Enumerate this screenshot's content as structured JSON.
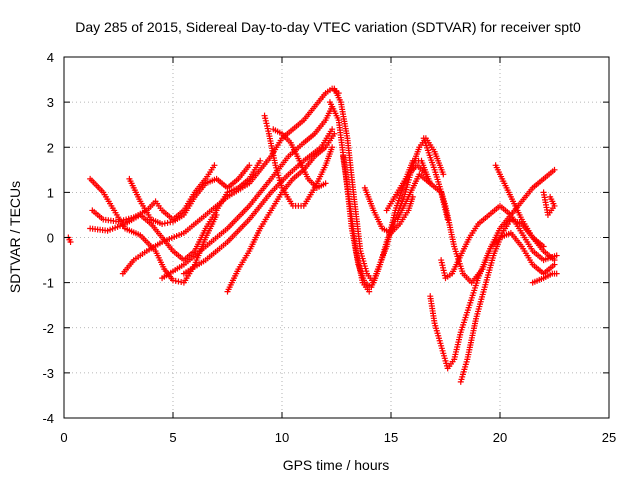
{
  "chart_data": {
    "type": "scatter",
    "title": "Day 285 of 2015, Sidereal Day-to-day VTEC variation (SDTVAR) for receiver spt0",
    "xlabel": "GPS time / hours",
    "ylabel": "SDTVAR / TECUs",
    "xlim": [
      0,
      25
    ],
    "ylim": [
      -4,
      4
    ],
    "xticks": [
      "0",
      "5",
      "10",
      "15",
      "20",
      "25"
    ],
    "yticks": [
      "4",
      "3",
      "2",
      "1",
      "0",
      "-1",
      "-2",
      "-3",
      "-4"
    ],
    "grid": true,
    "marker": "plus",
    "color": "#ff0000",
    "tracks": [
      [
        [
          0.2,
          0.0
        ],
        [
          0.3,
          -0.1
        ]
      ],
      [
        [
          1.2,
          1.3
        ],
        [
          1.8,
          1.0
        ],
        [
          2.3,
          0.6
        ],
        [
          2.8,
          0.2
        ],
        [
          3.5,
          0.05
        ],
        [
          4.2,
          -0.3
        ],
        [
          4.6,
          -0.7
        ],
        [
          5.0,
          -0.95
        ],
        [
          5.5,
          -1.0
        ],
        [
          6.0,
          -0.6
        ],
        [
          6.5,
          0.0
        ],
        [
          7.0,
          0.5
        ]
      ],
      [
        [
          1.3,
          0.6
        ],
        [
          1.8,
          0.4
        ],
        [
          2.5,
          0.35
        ],
        [
          3.2,
          0.45
        ],
        [
          3.8,
          0.6
        ],
        [
          4.2,
          0.8
        ],
        [
          4.5,
          0.6
        ],
        [
          5.0,
          0.4
        ],
        [
          5.5,
          0.6
        ],
        [
          6.0,
          1.0
        ],
        [
          6.5,
          1.3
        ],
        [
          6.9,
          1.6
        ]
      ],
      [
        [
          1.2,
          0.2
        ],
        [
          2.0,
          0.15
        ],
        [
          2.8,
          0.3
        ],
        [
          3.5,
          0.5
        ],
        [
          4.0,
          0.3
        ],
        [
          4.5,
          0.0
        ],
        [
          5.0,
          -0.3
        ],
        [
          5.5,
          -0.5
        ],
        [
          6.0,
          -0.3
        ],
        [
          6.5,
          0.2
        ],
        [
          7.0,
          0.6
        ],
        [
          7.5,
          1.0
        ],
        [
          8.0,
          1.1
        ],
        [
          8.5,
          1.3
        ],
        [
          9.0,
          1.7
        ]
      ],
      [
        [
          2.7,
          -0.8
        ],
        [
          3.2,
          -0.5
        ],
        [
          3.8,
          -0.3
        ],
        [
          4.5,
          -0.1
        ],
        [
          5.5,
          0.1
        ],
        [
          6.5,
          0.5
        ],
        [
          7.5,
          0.9
        ],
        [
          8.5,
          1.2
        ],
        [
          9.5,
          1.8
        ],
        [
          10.0,
          2.2
        ],
        [
          10.5,
          2.4
        ],
        [
          11.0,
          2.6
        ],
        [
          11.5,
          2.9
        ],
        [
          12.0,
          3.2
        ],
        [
          12.3,
          3.3
        ],
        [
          12.6,
          3.2
        ]
      ],
      [
        [
          3.0,
          1.3
        ],
        [
          3.5,
          0.8
        ],
        [
          4.0,
          0.4
        ],
        [
          4.5,
          0.3
        ],
        [
          5.0,
          0.35
        ],
        [
          5.5,
          0.5
        ],
        [
          6.0,
          0.9
        ],
        [
          6.5,
          1.2
        ],
        [
          7.0,
          1.3
        ],
        [
          7.5,
          1.1
        ],
        [
          8.0,
          1.3
        ],
        [
          8.5,
          1.6
        ]
      ],
      [
        [
          4.5,
          -0.9
        ],
        [
          5.5,
          -0.6
        ],
        [
          6.5,
          -0.2
        ],
        [
          7.5,
          0.2
        ],
        [
          8.5,
          0.7
        ],
        [
          9.5,
          1.3
        ],
        [
          10.3,
          1.8
        ],
        [
          11.0,
          2.1
        ],
        [
          11.5,
          2.3
        ],
        [
          12.0,
          2.6
        ],
        [
          12.3,
          2.9
        ]
      ],
      [
        [
          5.5,
          -0.8
        ],
        [
          6.5,
          -0.5
        ],
        [
          7.5,
          -0.1
        ],
        [
          8.5,
          0.4
        ],
        [
          9.5,
          1.0
        ],
        [
          10.3,
          1.4
        ],
        [
          11.0,
          1.7
        ],
        [
          11.8,
          2.0
        ],
        [
          12.3,
          2.4
        ]
      ],
      [
        [
          7.5,
          -1.2
        ],
        [
          8.0,
          -0.7
        ],
        [
          8.5,
          -0.3
        ],
        [
          9.0,
          0.2
        ],
        [
          9.5,
          0.6
        ],
        [
          10.0,
          1.0
        ],
        [
          10.5,
          1.3
        ],
        [
          11.0,
          1.5
        ],
        [
          11.5,
          1.8
        ],
        [
          12.0,
          2.0
        ],
        [
          12.4,
          2.3
        ]
      ],
      [
        [
          9.2,
          2.7
        ],
        [
          9.4,
          2.3
        ],
        [
          9.7,
          1.6
        ],
        [
          10.0,
          1.1
        ],
        [
          10.5,
          0.7
        ],
        [
          11.0,
          0.7
        ],
        [
          11.5,
          1.1
        ],
        [
          12.0,
          1.6
        ],
        [
          12.3,
          2.0
        ]
      ],
      [
        [
          9.6,
          2.4
        ],
        [
          10.0,
          2.3
        ],
        [
          10.4,
          2.1
        ],
        [
          10.8,
          1.7
        ],
        [
          11.2,
          1.3
        ],
        [
          11.6,
          1.1
        ],
        [
          12.0,
          1.2
        ]
      ],
      [
        [
          12.4,
          3.3
        ],
        [
          12.7,
          3.0
        ],
        [
          13.0,
          2.2
        ],
        [
          13.3,
          0.9
        ],
        [
          13.6,
          -0.3
        ],
        [
          13.9,
          -0.8
        ],
        [
          14.2,
          -1.0
        ],
        [
          14.5,
          -0.6
        ],
        [
          14.8,
          -0.1
        ],
        [
          15.2,
          0.4
        ],
        [
          15.6,
          0.9
        ],
        [
          16.0,
          1.6
        ],
        [
          16.3,
          2.0
        ],
        [
          16.6,
          2.2
        ],
        [
          17.0,
          1.9
        ],
        [
          17.4,
          1.4
        ]
      ],
      [
        [
          12.2,
          3.0
        ],
        [
          12.6,
          2.6
        ],
        [
          12.9,
          1.5
        ],
        [
          13.2,
          0.2
        ],
        [
          13.5,
          -0.6
        ],
        [
          13.8,
          -1.0
        ],
        [
          14.1,
          -1.1
        ],
        [
          14.4,
          -0.7
        ],
        [
          14.8,
          -0.2
        ],
        [
          15.2,
          0.6
        ],
        [
          15.6,
          1.2
        ],
        [
          16.0,
          1.7
        ],
        [
          16.4,
          1.7
        ],
        [
          16.8,
          1.2
        ]
      ],
      [
        [
          12.8,
          1.8
        ],
        [
          13.1,
          0.8
        ],
        [
          13.4,
          -0.3
        ],
        [
          13.7,
          -1.0
        ],
        [
          14.0,
          -1.2
        ]
      ],
      [
        [
          13.8,
          1.1
        ],
        [
          14.2,
          0.6
        ],
        [
          14.6,
          0.2
        ],
        [
          15.0,
          0.1
        ],
        [
          15.4,
          0.3
        ],
        [
          15.8,
          0.6
        ],
        [
          16.0,
          0.9
        ]
      ],
      [
        [
          14.8,
          0.6
        ],
        [
          15.3,
          1.0
        ],
        [
          15.8,
          1.4
        ],
        [
          16.2,
          1.6
        ],
        [
          16.6,
          1.4
        ]
      ],
      [
        [
          15.3,
          0.4
        ],
        [
          15.8,
          0.9
        ],
        [
          16.3,
          1.4
        ],
        [
          16.8,
          1.2
        ],
        [
          17.3,
          1.0
        ],
        [
          17.6,
          0.4
        ]
      ],
      [
        [
          16.5,
          2.2
        ],
        [
          17.0,
          1.5
        ],
        [
          17.5,
          0.7
        ],
        [
          17.9,
          -0.2
        ],
        [
          18.3,
          -0.8
        ],
        [
          18.7,
          -1.0
        ],
        [
          19.2,
          -0.7
        ],
        [
          19.6,
          -0.2
        ],
        [
          20.0,
          0.0
        ],
        [
          20.5,
          0.1
        ],
        [
          21.0,
          -0.2
        ],
        [
          21.5,
          -0.6
        ],
        [
          22.0,
          -0.8
        ],
        [
          22.5,
          -0.6
        ]
      ],
      [
        [
          17.3,
          -0.5
        ],
        [
          17.5,
          -0.9
        ],
        [
          17.8,
          -0.8
        ],
        [
          18.2,
          -0.4
        ],
        [
          18.6,
          0.0
        ],
        [
          19.0,
          0.3
        ],
        [
          19.5,
          0.5
        ],
        [
          20.0,
          0.7
        ],
        [
          20.5,
          0.5
        ],
        [
          21.0,
          0.1
        ],
        [
          21.5,
          -0.3
        ],
        [
          22.0,
          -0.5
        ],
        [
          22.6,
          -0.4
        ]
      ],
      [
        [
          16.8,
          -1.3
        ],
        [
          17.0,
          -1.9
        ],
        [
          17.3,
          -2.4
        ],
        [
          17.6,
          -2.9
        ],
        [
          17.9,
          -2.7
        ],
        [
          18.2,
          -2.1
        ],
        [
          18.6,
          -1.5
        ],
        [
          19.0,
          -0.9
        ],
        [
          19.5,
          -0.3
        ],
        [
          20.0,
          0.2
        ],
        [
          20.5,
          0.5
        ],
        [
          21.0,
          0.8
        ],
        [
          21.5,
          1.1
        ],
        [
          22.0,
          1.3
        ],
        [
          22.5,
          1.5
        ]
      ],
      [
        [
          18.2,
          -3.2
        ],
        [
          18.5,
          -2.7
        ],
        [
          18.9,
          -1.8
        ],
        [
          19.3,
          -1.1
        ],
        [
          19.7,
          -0.4
        ],
        [
          20.1,
          0.1
        ],
        [
          20.5,
          0.4
        ],
        [
          21.0,
          0.3
        ],
        [
          21.5,
          0.0
        ],
        [
          22.0,
          -0.2
        ]
      ],
      [
        [
          19.8,
          1.6
        ],
        [
          20.2,
          1.2
        ],
        [
          20.6,
          0.8
        ],
        [
          21.0,
          0.4
        ],
        [
          21.5,
          0.0
        ],
        [
          22.0,
          -0.3
        ],
        [
          22.5,
          -0.5
        ]
      ],
      [
        [
          22.0,
          1.0
        ],
        [
          22.2,
          0.5
        ],
        [
          22.5,
          0.7
        ],
        [
          22.3,
          0.9
        ]
      ],
      [
        [
          21.5,
          -1.0
        ],
        [
          22.0,
          -0.9
        ],
        [
          22.4,
          -0.8
        ],
        [
          22.6,
          -0.8
        ]
      ]
    ]
  }
}
